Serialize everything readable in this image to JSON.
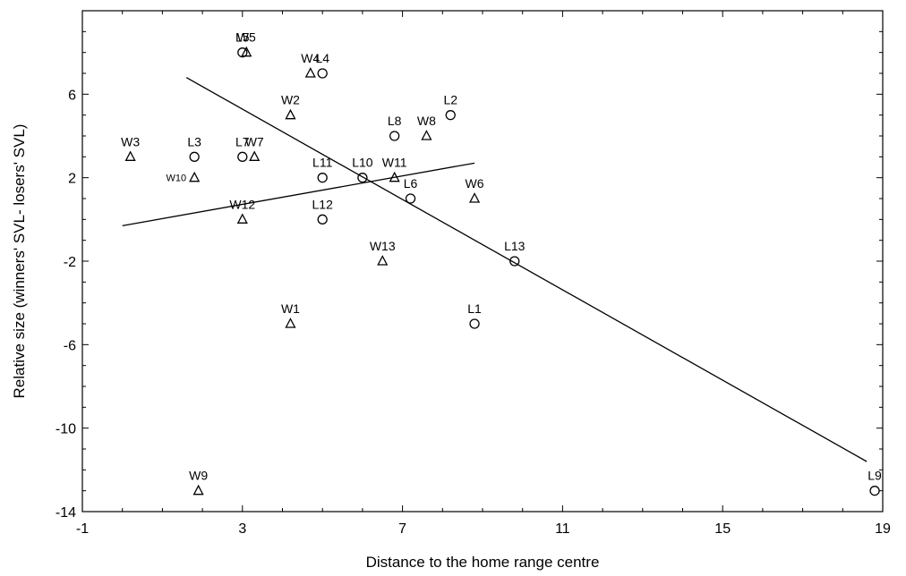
{
  "chart_data": {
    "type": "scatter",
    "xlabel": "Distance to the home range centre",
    "ylabel": "Relative size (winners' SVL- losers' SVL)",
    "xlim": [
      -1,
      19
    ],
    "ylim": [
      -14,
      10
    ],
    "xticks": [
      -1,
      3,
      7,
      11,
      15,
      19
    ],
    "yticks": [
      -14,
      -10,
      -6,
      -2,
      2,
      6
    ],
    "grid": false,
    "series": [
      {
        "marker": "triangle",
        "points": [
          {
            "label": "W1",
            "x": 4.2,
            "y": -5
          },
          {
            "label": "W2",
            "x": 4.2,
            "y": 5
          },
          {
            "label": "W3",
            "x": 0.2,
            "y": 3
          },
          {
            "label": "W4",
            "x": 4.7,
            "y": 7
          },
          {
            "label": "W5",
            "x": 3.1,
            "y": 8
          },
          {
            "label": "W6",
            "x": 8.8,
            "y": 1
          },
          {
            "label": "W7",
            "x": 3.3,
            "y": 3
          },
          {
            "label": "W8",
            "x": 7.6,
            "y": 4
          },
          {
            "label": "W9",
            "x": 1.9,
            "y": -13
          },
          {
            "label": "W10",
            "x": 1.8,
            "y": 2
          },
          {
            "label": "W11",
            "x": 6.8,
            "y": 2
          },
          {
            "label": "W12",
            "x": 3.0,
            "y": 0
          },
          {
            "label": "W13",
            "x": 6.5,
            "y": -2
          }
        ]
      },
      {
        "marker": "circle",
        "points": [
          {
            "label": "L1",
            "x": 8.8,
            "y": -5
          },
          {
            "label": "L2",
            "x": 8.2,
            "y": 5
          },
          {
            "label": "L3",
            "x": 1.8,
            "y": 3
          },
          {
            "label": "L4",
            "x": 5.0,
            "y": 7
          },
          {
            "label": "L5",
            "x": 3.0,
            "y": 8
          },
          {
            "label": "L6",
            "x": 7.2,
            "y": 1
          },
          {
            "label": "L7",
            "x": 3.0,
            "y": 3
          },
          {
            "label": "L8",
            "x": 6.8,
            "y": 4
          },
          {
            "label": "L9",
            "x": 18.8,
            "y": -13
          },
          {
            "label": "L10",
            "x": 6.0,
            "y": 2
          },
          {
            "label": "L11",
            "x": 5.0,
            "y": 2
          },
          {
            "label": "L12",
            "x": 5.0,
            "y": 0
          },
          {
            "label": "L13",
            "x": 9.8,
            "y": -2
          }
        ]
      }
    ],
    "fit_lines": [
      {
        "x": [
          0.0,
          8.8
        ],
        "y": [
          -0.3,
          2.7
        ]
      },
      {
        "x": [
          1.6,
          18.6
        ],
        "y": [
          6.8,
          -11.6
        ]
      }
    ]
  }
}
